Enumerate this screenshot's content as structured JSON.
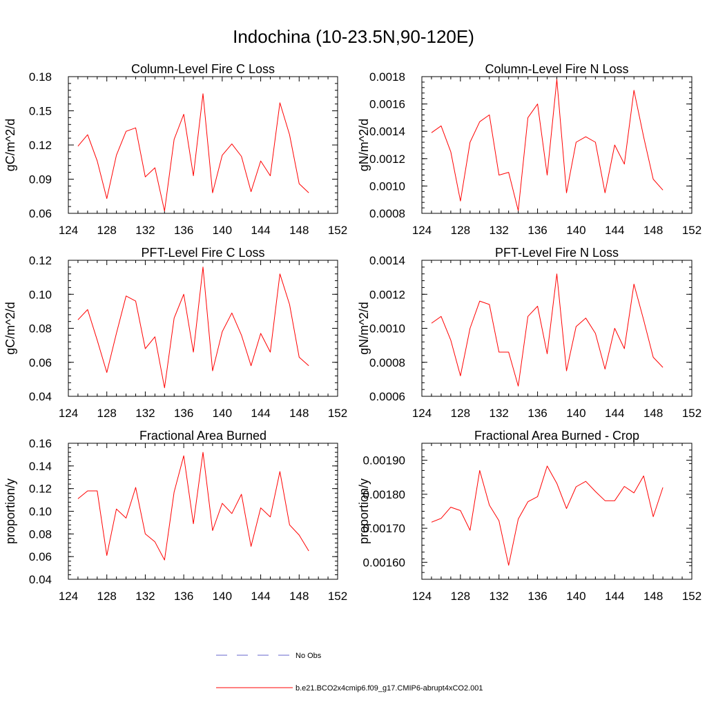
{
  "figure": {
    "title": "Indochina (10-23.5N,90-120E)"
  },
  "legend": {
    "entries": [
      {
        "label": "No Obs",
        "color": "#6666cc",
        "style": "dashed"
      },
      {
        "label": "b.e21.BCO2x4cmip6.f09_g17.CMIP6-abrupt4xCO2.001",
        "color": "#ff0000",
        "style": "solid"
      }
    ]
  },
  "chart_data": [
    {
      "type": "line",
      "title": "Column-Level Fire C Loss",
      "xlabel": "",
      "ylabel": "gC/m^2/d",
      "xlim": [
        124,
        152
      ],
      "ylim": [
        0.06,
        0.18
      ],
      "xticks": [
        "124",
        "128",
        "132",
        "136",
        "140",
        "144",
        "148",
        "152"
      ],
      "yticks": [
        "0.06",
        "0.09",
        "0.12",
        "0.15",
        "0.18"
      ],
      "x": [
        125,
        126,
        127,
        128,
        129,
        130,
        131,
        132,
        133,
        134,
        135,
        136,
        137,
        138,
        139,
        140,
        141,
        142,
        143,
        144,
        145,
        146,
        147,
        148,
        149
      ],
      "series": [
        {
          "name": "b.e21.BCO2x4cmip6.f09_g17.CMIP6-abrupt4xCO2.001",
          "color": "#ff0000",
          "values": [
            0.119,
            0.129,
            0.106,
            0.073,
            0.111,
            0.132,
            0.135,
            0.092,
            0.1,
            0.062,
            0.125,
            0.147,
            0.093,
            0.165,
            0.078,
            0.111,
            0.121,
            0.11,
            0.079,
            0.106,
            0.093,
            0.157,
            0.129,
            0.086,
            0.078
          ]
        }
      ]
    },
    {
      "type": "line",
      "title": "Column-Level Fire N Loss",
      "xlabel": "",
      "ylabel": "gN/m^2/d",
      "xlim": [
        124,
        152
      ],
      "ylim": [
        0.0008,
        0.0018
      ],
      "xticks": [
        "124",
        "128",
        "132",
        "136",
        "140",
        "144",
        "148",
        "152"
      ],
      "yticks": [
        "0.0008",
        "0.0010",
        "0.0012",
        "0.0014",
        "0.0016",
        "0.0018"
      ],
      "x": [
        125,
        126,
        127,
        128,
        129,
        130,
        131,
        132,
        133,
        134,
        135,
        136,
        137,
        138,
        139,
        140,
        141,
        142,
        143,
        144,
        145,
        146,
        147,
        148,
        149
      ],
      "series": [
        {
          "name": "b.e21.BCO2x4cmip6.f09_g17.CMIP6-abrupt4xCO2.001",
          "color": "#ff0000",
          "values": [
            0.00139,
            0.00144,
            0.00125,
            0.00089,
            0.00132,
            0.00147,
            0.00152,
            0.00108,
            0.0011,
            0.00082,
            0.0015,
            0.0016,
            0.00108,
            0.00178,
            0.00095,
            0.00132,
            0.00136,
            0.00132,
            0.00095,
            0.0013,
            0.00116,
            0.0017,
            0.00136,
            0.00105,
            0.00097
          ]
        }
      ]
    },
    {
      "type": "line",
      "title": "PFT-Level Fire C Loss",
      "xlabel": "",
      "ylabel": "gC/m^2/d",
      "xlim": [
        124,
        152
      ],
      "ylim": [
        0.04,
        0.12
      ],
      "xticks": [
        "124",
        "128",
        "132",
        "136",
        "140",
        "144",
        "148",
        "152"
      ],
      "yticks": [
        "0.04",
        "0.06",
        "0.08",
        "0.10",
        "0.12"
      ],
      "x": [
        125,
        126,
        127,
        128,
        129,
        130,
        131,
        132,
        133,
        134,
        135,
        136,
        137,
        138,
        139,
        140,
        141,
        142,
        143,
        144,
        145,
        146,
        147,
        148,
        149
      ],
      "series": [
        {
          "name": "b.e21.BCO2x4cmip6.f09_g17.CMIP6-abrupt4xCO2.001",
          "color": "#ff0000",
          "values": [
            0.085,
            0.091,
            0.073,
            0.054,
            0.077,
            0.099,
            0.096,
            0.068,
            0.075,
            0.045,
            0.086,
            0.1,
            0.066,
            0.116,
            0.055,
            0.078,
            0.089,
            0.076,
            0.058,
            0.077,
            0.066,
            0.112,
            0.094,
            0.063,
            0.058
          ]
        }
      ]
    },
    {
      "type": "line",
      "title": "PFT-Level Fire N Loss",
      "xlabel": "",
      "ylabel": "gN/m^2/d",
      "xlim": [
        124,
        152
      ],
      "ylim": [
        0.0006,
        0.0014
      ],
      "xticks": [
        "124",
        "128",
        "132",
        "136",
        "140",
        "144",
        "148",
        "152"
      ],
      "yticks": [
        "0.0006",
        "0.0008",
        "0.0010",
        "0.0012",
        "0.0014"
      ],
      "x": [
        125,
        126,
        127,
        128,
        129,
        130,
        131,
        132,
        133,
        134,
        135,
        136,
        137,
        138,
        139,
        140,
        141,
        142,
        143,
        144,
        145,
        146,
        147,
        148,
        149
      ],
      "series": [
        {
          "name": "b.e21.BCO2x4cmip6.f09_g17.CMIP6-abrupt4xCO2.001",
          "color": "#ff0000",
          "values": [
            0.00103,
            0.00107,
            0.00093,
            0.00072,
            0.001,
            0.00116,
            0.00114,
            0.00086,
            0.00086,
            0.00066,
            0.00107,
            0.00113,
            0.00085,
            0.00132,
            0.00075,
            0.00101,
            0.00106,
            0.00097,
            0.00076,
            0.001,
            0.00088,
            0.00126,
            0.00105,
            0.00083,
            0.00077
          ]
        }
      ]
    },
    {
      "type": "line",
      "title": "Fractional Area Burned",
      "xlabel": "",
      "ylabel": "proportion/y",
      "xlim": [
        124,
        152
      ],
      "ylim": [
        0.04,
        0.16
      ],
      "xticks": [
        "124",
        "128",
        "132",
        "136",
        "140",
        "144",
        "148",
        "152"
      ],
      "yticks": [
        "0.04",
        "0.06",
        "0.08",
        "0.10",
        "0.12",
        "0.14",
        "0.16"
      ],
      "x": [
        125,
        126,
        127,
        128,
        129,
        130,
        131,
        132,
        133,
        134,
        135,
        136,
        137,
        138,
        139,
        140,
        141,
        142,
        143,
        144,
        145,
        146,
        147,
        148,
        149
      ],
      "series": [
        {
          "name": "b.e21.BCO2x4cmip6.f09_g17.CMIP6-abrupt4xCO2.001",
          "color": "#ff0000",
          "values": [
            0.111,
            0.118,
            0.118,
            0.061,
            0.102,
            0.094,
            0.121,
            0.08,
            0.073,
            0.057,
            0.117,
            0.149,
            0.089,
            0.152,
            0.083,
            0.107,
            0.098,
            0.115,
            0.069,
            0.103,
            0.095,
            0.135,
            0.088,
            0.079,
            0.065
          ]
        }
      ]
    },
    {
      "type": "line",
      "title": "Fractional Area Burned - Crop",
      "xlabel": "",
      "ylabel": "proportion/y",
      "xlim": [
        124,
        152
      ],
      "ylim": [
        0.00155,
        0.00195
      ],
      "xticks": [
        "124",
        "128",
        "132",
        "136",
        "140",
        "144",
        "148",
        "152"
      ],
      "yticks": [
        "0.00160",
        "0.00170",
        "0.00180",
        "0.00190"
      ],
      "ytick_values": [
        0.0016,
        0.0017,
        0.0018,
        0.0019
      ],
      "x": [
        125,
        126,
        127,
        128,
        129,
        130,
        131,
        132,
        133,
        134,
        135,
        136,
        137,
        138,
        139,
        140,
        141,
        142,
        143,
        144,
        145,
        146,
        147,
        148,
        149
      ],
      "series": [
        {
          "name": "b.e21.BCO2x4cmip6.f09_g17.CMIP6-abrupt4xCO2.001",
          "color": "#ff0000",
          "values": [
            0.001718,
            0.001729,
            0.001762,
            0.001752,
            0.001694,
            0.00187,
            0.001768,
            0.001722,
            0.001591,
            0.001727,
            0.001778,
            0.001793,
            0.001883,
            0.001832,
            0.001758,
            0.001822,
            0.001838,
            0.001808,
            0.001781,
            0.001781,
            0.001823,
            0.001804,
            0.001854,
            0.001734,
            0.00182
          ]
        }
      ]
    }
  ]
}
